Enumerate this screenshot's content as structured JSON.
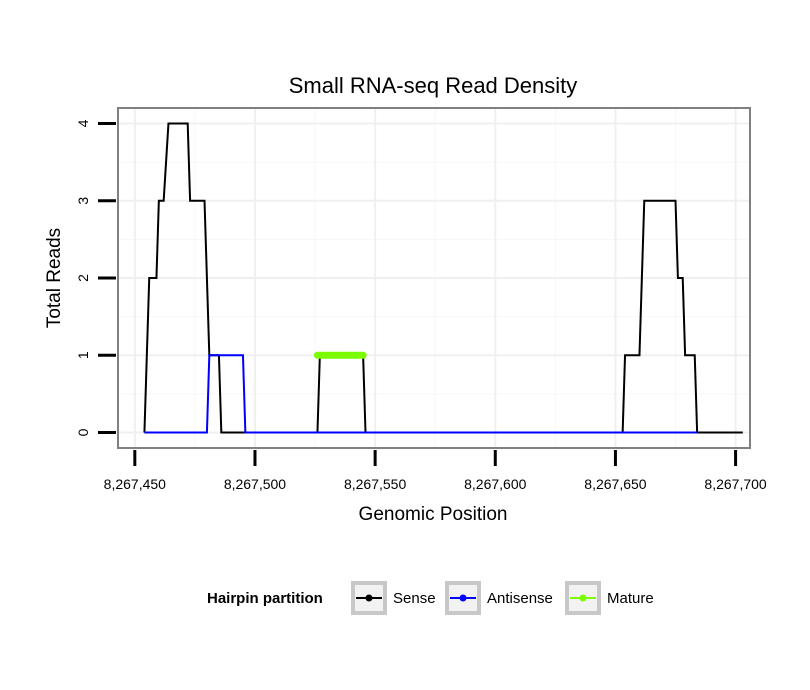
{
  "chart_data": {
    "type": "line",
    "title": "Small RNA-seq Read Density",
    "xlabel": "Genomic Position",
    "ylabel": "Total Reads",
    "xlim": [
      8267443,
      8267706
    ],
    "ylim": [
      -0.2,
      4.2
    ],
    "x_ticks": [
      8267450,
      8267500,
      8267550,
      8267600,
      8267650,
      8267700
    ],
    "x_tick_labels": [
      "8,267,450",
      "8,267,500",
      "8,267,550",
      "8,267,600",
      "8,267,650",
      "8,267,700"
    ],
    "y_ticks": [
      0,
      1,
      2,
      3,
      4
    ],
    "y_tick_labels": [
      "0",
      "1",
      "2",
      "3",
      "4"
    ],
    "grid": true,
    "legend": {
      "title": "Hairpin partition",
      "position": "bottom",
      "entries": [
        "Sense",
        "Antisense",
        "Mature"
      ]
    },
    "series": [
      {
        "name": "Sense",
        "color": "#000000",
        "points": [
          [
            8267454,
            0
          ],
          [
            8267456,
            2
          ],
          [
            8267459,
            2
          ],
          [
            8267460,
            3
          ],
          [
            8267462,
            3
          ],
          [
            8267464,
            4
          ],
          [
            8267472,
            4
          ],
          [
            8267473,
            3
          ],
          [
            8267479,
            3
          ],
          [
            8267481,
            1
          ],
          [
            8267485,
            1
          ],
          [
            8267486,
            0
          ],
          [
            8267526,
            0
          ],
          [
            8267527,
            1
          ],
          [
            8267545,
            1
          ],
          [
            8267546,
            0
          ],
          [
            8267653,
            0
          ],
          [
            8267654,
            1
          ],
          [
            8267660,
            1
          ],
          [
            8267662,
            3
          ],
          [
            8267675,
            3
          ],
          [
            8267676,
            2
          ],
          [
            8267678,
            2
          ],
          [
            8267679,
            1
          ],
          [
            8267683,
            1
          ],
          [
            8267684,
            0
          ],
          [
            8267703,
            0
          ]
        ]
      },
      {
        "name": "Antisense",
        "color": "#0000ff",
        "points": [
          [
            8267454,
            0
          ],
          [
            8267480,
            0
          ],
          [
            8267481,
            1
          ],
          [
            8267495,
            1
          ],
          [
            8267496,
            0
          ],
          [
            8267684,
            0
          ]
        ]
      },
      {
        "name": "Mature",
        "color": "#7cfc00",
        "points": [
          [
            8267526,
            1
          ],
          [
            8267545,
            1
          ]
        ]
      }
    ]
  }
}
